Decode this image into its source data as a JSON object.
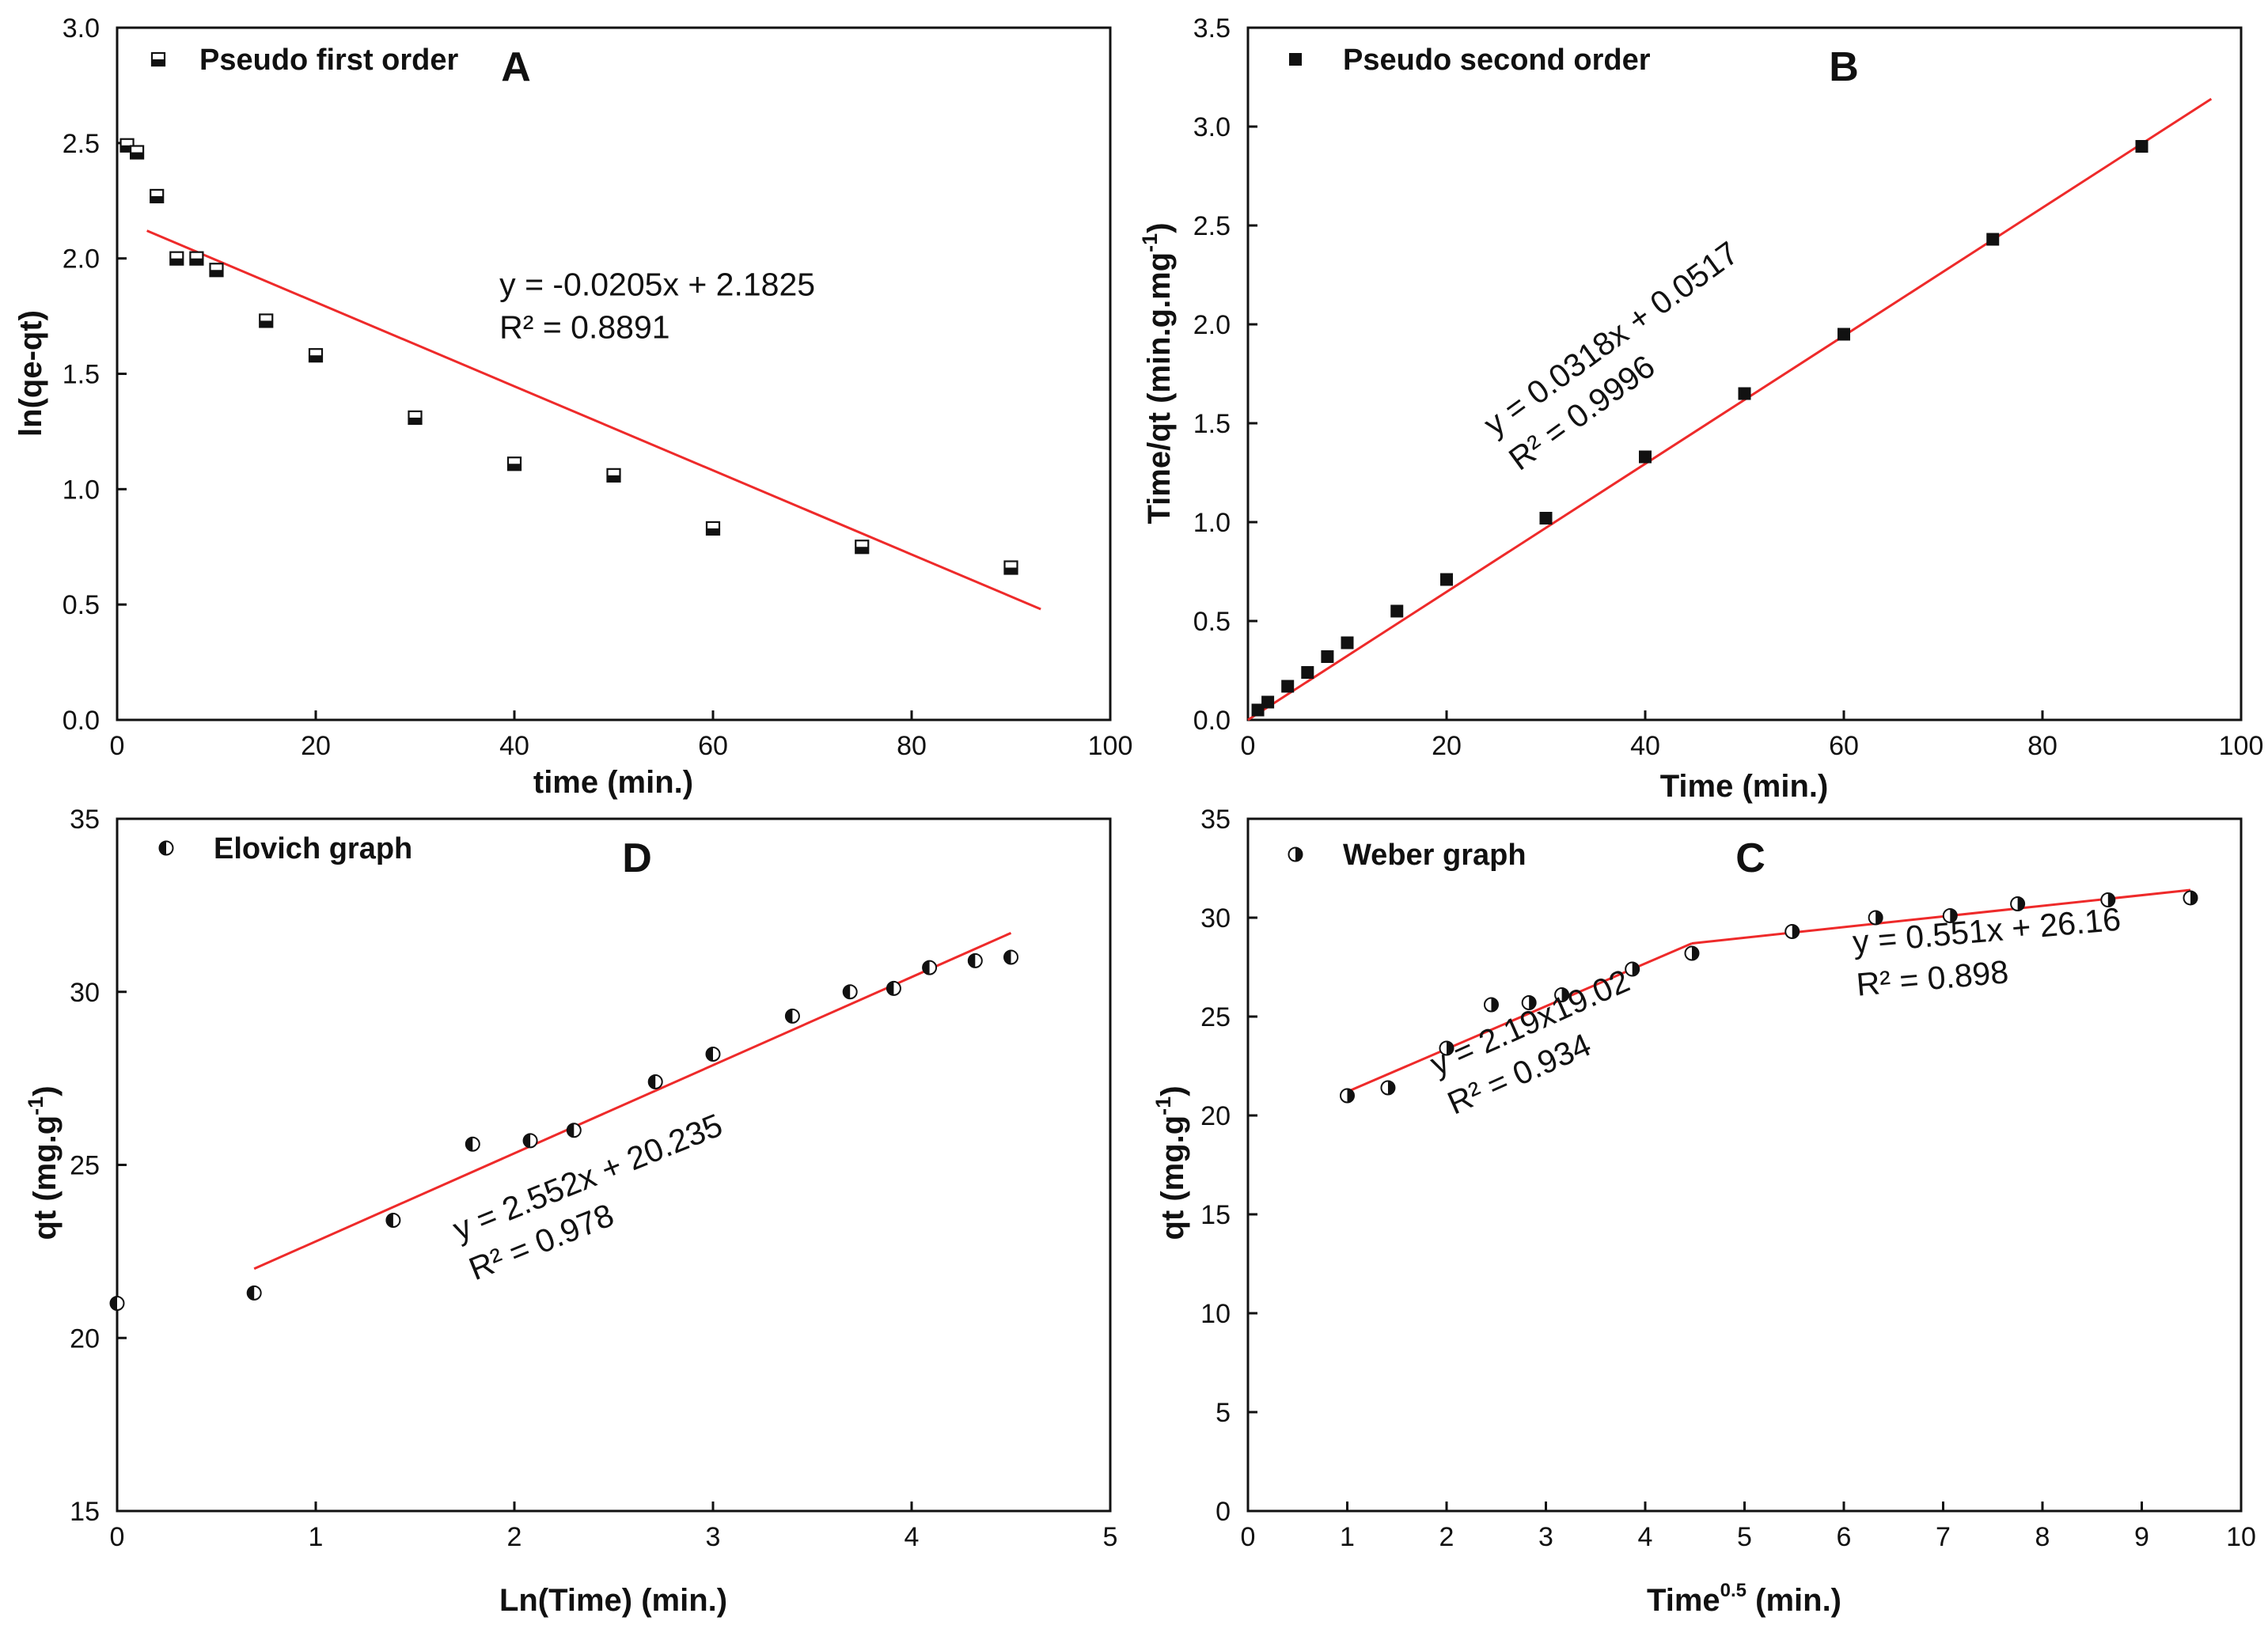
{
  "chart_data": [
    {
      "panel_id": "A",
      "type": "scatter",
      "panel_letter": "A",
      "legend": {
        "label": "Pseudo first order",
        "marker": "half-filled-square-bottom",
        "position": "top-left"
      },
      "xlabel": "time (min.)",
      "ylabel": "ln(qe-qt)",
      "xlim": [
        0,
        100
      ],
      "ylim": [
        0,
        3.0
      ],
      "xticks": [
        "0",
        "20",
        "40",
        "60",
        "80",
        "100"
      ],
      "yticks": [
        "0.0",
        "0.5",
        "1.0",
        "1.5",
        "2.0",
        "2.5",
        "3.0"
      ],
      "x": [
        1,
        2,
        4,
        6,
        8,
        10,
        15,
        20,
        30,
        40,
        50,
        60,
        75,
        90
      ],
      "y": [
        2.49,
        2.46,
        2.27,
        2.0,
        2.0,
        1.95,
        1.73,
        1.58,
        1.31,
        1.11,
        1.06,
        0.83,
        0.75,
        0.66
      ],
      "fit_lines": [
        {
          "x": [
            3,
            93
          ],
          "y": [
            2.12,
            0.48
          ]
        }
      ],
      "equations": [
        {
          "line1": "y = -0.0205x + 2.1825",
          "line2": "R² = 0.8891",
          "at": [
            38.5,
            1.84
          ],
          "angle": 0
        }
      ]
    },
    {
      "panel_id": "B",
      "type": "scatter",
      "panel_letter": "B",
      "legend": {
        "label": "Pseudo second order",
        "marker": "filled-square",
        "position": "top-left"
      },
      "xlabel": "Time (min.)",
      "ylabel": "Time/qt (min.g.mg-1)",
      "xlim": [
        0,
        100
      ],
      "ylim": [
        0,
        3.5
      ],
      "xticks": [
        "0",
        "20",
        "40",
        "60",
        "80",
        "100"
      ],
      "yticks": [
        "0.0",
        "0.5",
        "1.0",
        "1.5",
        "2.0",
        "2.5",
        "3.0",
        "3.5"
      ],
      "x": [
        1,
        2,
        4,
        6,
        8,
        10,
        15,
        20,
        30,
        40,
        50,
        60,
        75,
        90
      ],
      "y": [
        0.05,
        0.09,
        0.17,
        0.24,
        0.32,
        0.39,
        0.55,
        0.71,
        1.02,
        1.33,
        1.65,
        1.95,
        2.43,
        2.9
      ],
      "fit_lines": [
        {
          "x": [
            0,
            97
          ],
          "y": [
            0.0,
            3.14
          ]
        }
      ],
      "equations": [
        {
          "line1": "y = 0.0318x + 0.0517",
          "line2": "R² = 0.9996",
          "at": [
            24.8,
            1.43
          ],
          "angle": -36
        }
      ]
    },
    {
      "panel_id": "D",
      "type": "scatter",
      "panel_letter": "D",
      "legend": {
        "label": "Elovich graph",
        "marker": "half-filled-circle-left",
        "position": "top-left"
      },
      "xlabel": "Ln(Time) (min.)",
      "ylabel": "qt (mg.g-1)",
      "xlim": [
        0,
        5
      ],
      "ylim": [
        15,
        35
      ],
      "xticks": [
        "0",
        "1",
        "2",
        "3",
        "4",
        "5"
      ],
      "yticks": [
        "15",
        "20",
        "25",
        "30",
        "35"
      ],
      "x": [
        0,
        0.69,
        1.39,
        1.79,
        2.08,
        2.3,
        2.71,
        3.0,
        3.4,
        3.69,
        3.91,
        4.09,
        4.32,
        4.5
      ],
      "y": [
        21.0,
        21.3,
        23.4,
        25.6,
        25.7,
        26.0,
        27.4,
        28.2,
        29.3,
        30.0,
        30.1,
        30.7,
        30.9,
        31.0
      ],
      "fit_lines": [
        {
          "x": [
            0.69,
            4.5
          ],
          "y": [
            22.0,
            31.7
          ]
        }
      ],
      "equations": [
        {
          "line1": "y = 2.552x + 20.235",
          "line2": "R² = 0.978",
          "at": [
            1.72,
            22.8
          ],
          "angle": -22
        }
      ]
    },
    {
      "panel_id": "C",
      "type": "scatter",
      "panel_letter": "C",
      "legend": {
        "label": "Weber graph",
        "marker": "half-filled-circle-right",
        "position": "top-left"
      },
      "xlabel": "Time0.5 (min.)",
      "xlabel_parts": {
        "base": "Time",
        "sup": "0.5",
        "rest": " (min.)"
      },
      "ylabel": "qt (mg.g-1)",
      "xlim": [
        0,
        10
      ],
      "ylim": [
        0,
        35
      ],
      "xticks": [
        "0",
        "1",
        "2",
        "3",
        "4",
        "5",
        "6",
        "7",
        "8",
        "9",
        "10"
      ],
      "yticks": [
        "0",
        "5",
        "10",
        "15",
        "20",
        "25",
        "30",
        "35"
      ],
      "x": [
        1.0,
        1.41,
        2.0,
        2.45,
        2.83,
        3.16,
        3.87,
        4.47,
        5.48,
        6.32,
        7.07,
        7.75,
        8.66,
        9.49
      ],
      "y": [
        21.0,
        21.4,
        23.4,
        25.6,
        25.7,
        26.1,
        27.4,
        28.2,
        29.3,
        30.0,
        30.1,
        30.7,
        30.9,
        31.0
      ],
      "fit_lines": [
        {
          "x": [
            1.0,
            4.47
          ],
          "y": [
            21.2,
            28.7
          ]
        },
        {
          "x": [
            4.47,
            9.49
          ],
          "y": [
            28.7,
            31.4
          ]
        }
      ],
      "equations": [
        {
          "line1": "y = 2.19x19.02",
          "line2": "R² = 0.934",
          "at": [
            1.9,
            22.0
          ],
          "angle": -24
        },
        {
          "line1": "y = 0.551x + 26.16",
          "line2": "R² = 0.898",
          "at": [
            6.1,
            28.2
          ],
          "angle": -5
        }
      ]
    }
  ]
}
